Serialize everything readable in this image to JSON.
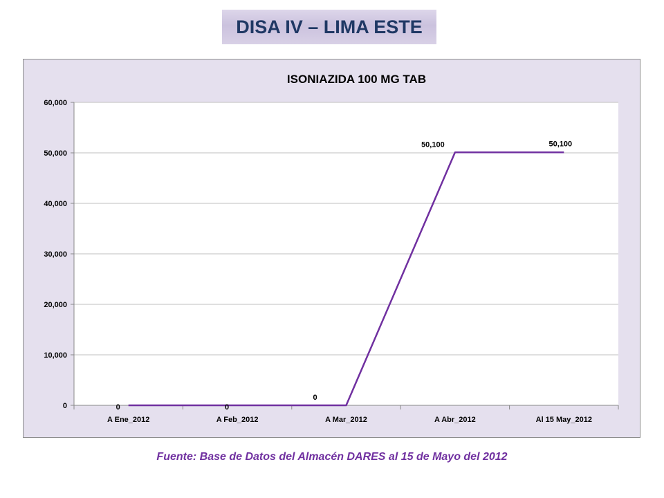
{
  "slide": {
    "title": "DISA IV – LIMA ESTE",
    "source": "Fuente: Base de Datos del Almacén DARES al 15 de Mayo del 2012"
  },
  "chart_data": {
    "type": "line",
    "title": "ISONIAZIDA 100 MG TAB",
    "xlabel": "",
    "ylabel": "",
    "categories": [
      "A Ene_2012",
      "A Feb_2012",
      "A Mar_2012",
      "A Abr_2012",
      "Al 15 May_2012"
    ],
    "values": [
      0,
      0,
      0,
      50100,
      50100
    ],
    "data_labels": [
      "0",
      "0",
      "0",
      "50,100",
      "50,100"
    ],
    "ylim": [
      0,
      60000
    ],
    "yticks": [
      0,
      10000,
      20000,
      30000,
      40000,
      50000,
      60000
    ],
    "ytick_labels": [
      "0",
      "10,000",
      "20,000",
      "30,000",
      "40,000",
      "50,000",
      "60,000"
    ],
    "grid": true,
    "legend": "none",
    "colors": {
      "line": "#7030a0",
      "frame_bg": "#e5e0ee",
      "plot_bg": "#ffffff",
      "grid": "#bfbfbf",
      "title_text": "#1f3864",
      "source_text": "#7030a0"
    }
  }
}
